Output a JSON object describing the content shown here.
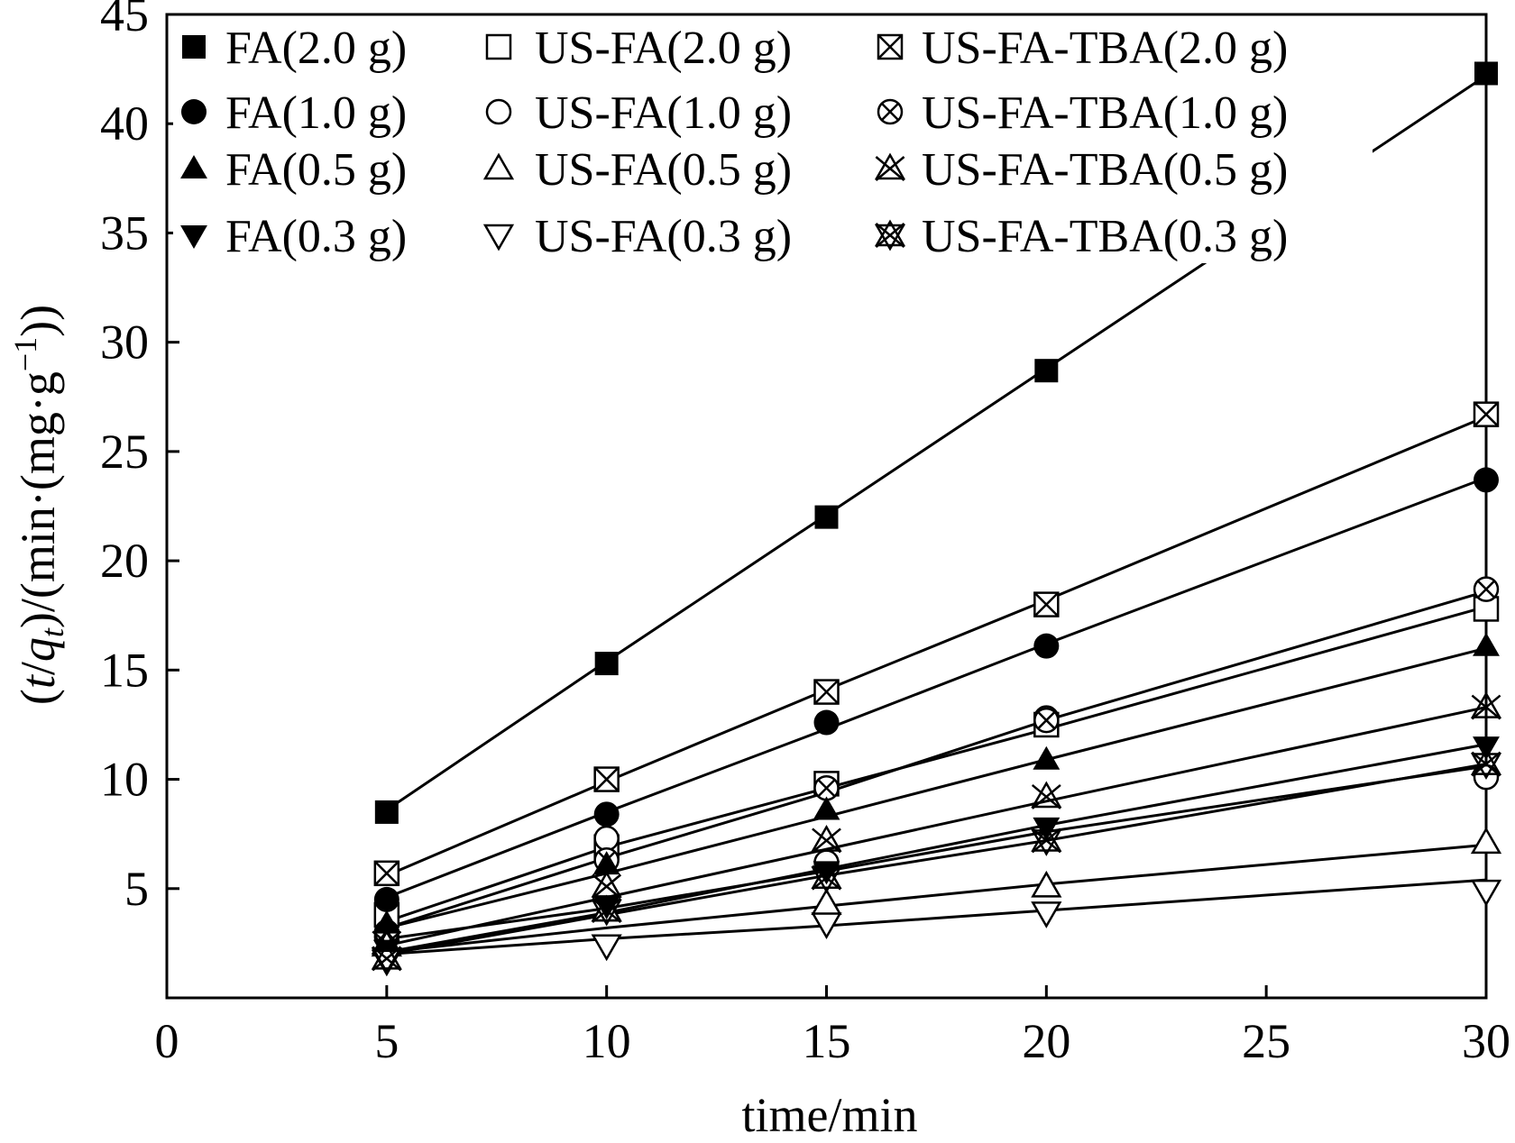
{
  "chart_data": {
    "type": "line",
    "xlabel": "time/min",
    "ylabel": {
      "prefix": "(",
      "t": "t",
      "slash": "/",
      "q": "q",
      "sub": "t",
      "suffix": ")/(min·(mg·g",
      "sup": "−1",
      "end": "))"
    },
    "xlim": [
      0,
      30
    ],
    "ylim": [
      0,
      45
    ],
    "xticks": [
      0,
      5,
      10,
      15,
      20,
      25,
      30
    ],
    "yticks": [
      5,
      10,
      15,
      20,
      25,
      30,
      35,
      40,
      45
    ],
    "grid": false,
    "legend_position": "top-left",
    "x": [
      5,
      10,
      15,
      20,
      30
    ],
    "series": [
      {
        "name": "FA(2.0 g)",
        "marker": "square-filled",
        "values": [
          8.5,
          15.3,
          22.0,
          28.7,
          42.3
        ],
        "fit": [
          8.6,
          15.4,
          22.1,
          28.8,
          42.2
        ]
      },
      {
        "name": "US-FA(2.0 g)",
        "marker": "square-open",
        "values": [
          3.8,
          6.9,
          9.8,
          12.5,
          17.8
        ],
        "fit": [
          3.5,
          6.9,
          9.6,
          12.3,
          17.9
        ]
      },
      {
        "name": "US-FA-TBA(2.0 g)",
        "marker": "square-x",
        "values": [
          5.7,
          10.0,
          14.0,
          18.0,
          26.7
        ],
        "fit": [
          5.6,
          9.9,
          14.1,
          18.2,
          26.6
        ]
      },
      {
        "name": "FA(1.0 g)",
        "marker": "circle-filled",
        "values": [
          4.5,
          8.4,
          12.6,
          16.1,
          23.7
        ],
        "fit": [
          4.6,
          8.5,
          12.3,
          16.2,
          23.8
        ]
      },
      {
        "name": "US-FA(1.0 g)",
        "marker": "circle-open",
        "values": [
          2.8,
          7.3,
          6.2,
          12.8,
          10.1
        ],
        "fit": [
          2.7,
          4.1,
          5.8,
          7.6,
          10.6
        ]
      },
      {
        "name": "US-FA-TBA(1.0 g)",
        "marker": "circle-x",
        "values": [
          3.0,
          6.3,
          9.6,
          12.7,
          18.7
        ],
        "fit": [
          3.2,
          6.4,
          9.4,
          12.7,
          18.6
        ]
      },
      {
        "name": "FA(0.5 g)",
        "marker": "triangle-up-filled",
        "values": [
          3.4,
          6.1,
          8.6,
          10.9,
          16.1
        ],
        "fit": [
          3.2,
          5.7,
          8.3,
          10.9,
          16.0
        ]
      },
      {
        "name": "US-FA(0.5 g)",
        "marker": "triangle-up-open",
        "values": [
          2.4,
          4.0,
          4.3,
          5.1,
          7.1
        ],
        "fit": [
          2.1,
          3.2,
          4.2,
          5.2,
          7.0
        ]
      },
      {
        "name": "US-FA-TBA(0.5 g)",
        "marker": "triangle-x",
        "values": [
          2.5,
          5.1,
          7.2,
          9.2,
          13.3
        ],
        "fit": [
          2.4,
          4.6,
          6.8,
          9.0,
          13.3
        ]
      },
      {
        "name": "FA(0.3 g)",
        "marker": "triangle-down-filled",
        "values": [
          2.2,
          4.2,
          5.8,
          7.8,
          11.5
        ],
        "fit": [
          2.1,
          3.9,
          5.9,
          7.9,
          11.6
        ]
      },
      {
        "name": "US-FA(0.3 g)",
        "marker": "triangle-down-open",
        "values": [
          1.7,
          2.4,
          3.4,
          3.9,
          4.9
        ],
        "fit": [
          2.0,
          2.7,
          3.3,
          4.0,
          5.4
        ]
      },
      {
        "name": "US-FA-TBA(0.3 g)",
        "marker": "triangle-star",
        "values": [
          1.8,
          4.0,
          5.5,
          7.2,
          10.7
        ],
        "fit": [
          2.0,
          3.8,
          5.6,
          7.2,
          10.7
        ]
      }
    ]
  }
}
